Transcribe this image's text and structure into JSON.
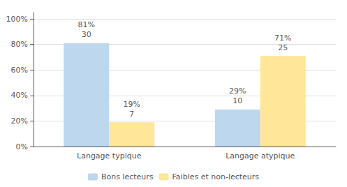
{
  "chart_data": {
    "type": "bar",
    "categories": [
      "Langage typique",
      "Langage atypique"
    ],
    "series": [
      {
        "name": "Bons lecteurs",
        "color": "#bdd7ee",
        "values": [
          81,
          29
        ],
        "value_labels": [
          "81%",
          "29%"
        ],
        "counts": [
          30,
          10
        ]
      },
      {
        "name": "Faibles et non-lecteurs",
        "color": "#ffe699",
        "values": [
          19,
          71
        ],
        "value_labels": [
          "19%",
          "71%"
        ],
        "counts": [
          7,
          25
        ]
      }
    ],
    "ylim": [
      0,
      105
    ],
    "yticks": [
      {
        "value": 0,
        "label": "0%"
      },
      {
        "value": 20,
        "label": "20%"
      },
      {
        "value": 40,
        "label": "40%"
      },
      {
        "value": 60,
        "label": "60%"
      },
      {
        "value": 80,
        "label": "80%"
      },
      {
        "value": 100,
        "label": "100%"
      }
    ],
    "grid": true,
    "legend": "bottom",
    "data_labels": true
  }
}
